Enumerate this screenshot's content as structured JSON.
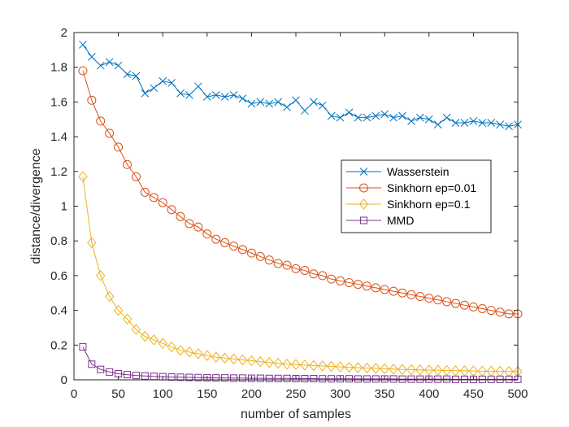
{
  "chart_data": {
    "type": "line",
    "title": "",
    "xlabel": "number of samples",
    "ylabel": "distance/divergence",
    "xlim": [
      0,
      500
    ],
    "ylim": [
      0,
      2
    ],
    "xticks": [
      0,
      50,
      100,
      150,
      200,
      250,
      300,
      350,
      400,
      450,
      500
    ],
    "yticks": [
      0,
      0.2,
      0.4,
      0.6,
      0.8,
      1,
      1.2,
      1.4,
      1.6,
      1.8,
      2
    ],
    "xtick_labels": [
      "0",
      "50",
      "100",
      "150",
      "200",
      "250",
      "300",
      "350",
      "400",
      "450",
      "500"
    ],
    "ytick_labels": [
      "0",
      "0.2",
      "0.4",
      "0.6",
      "0.8",
      "1",
      "1.2",
      "1.4",
      "1.6",
      "1.8",
      "2"
    ],
    "legend_position": "center-right",
    "x": [
      10,
      20,
      30,
      40,
      50,
      60,
      70,
      80,
      90,
      100,
      110,
      120,
      130,
      140,
      150,
      160,
      170,
      180,
      190,
      200,
      210,
      220,
      230,
      240,
      250,
      260,
      270,
      280,
      290,
      300,
      310,
      320,
      330,
      340,
      350,
      360,
      370,
      380,
      390,
      400,
      410,
      420,
      430,
      440,
      450,
      460,
      470,
      480,
      490,
      500
    ],
    "series": [
      {
        "name": "Wasserstein",
        "color": "#0072BD",
        "marker": "x",
        "values": [
          1.93,
          1.86,
          1.81,
          1.83,
          1.81,
          1.76,
          1.75,
          1.65,
          1.68,
          1.72,
          1.71,
          1.65,
          1.64,
          1.69,
          1.63,
          1.64,
          1.63,
          1.64,
          1.62,
          1.59,
          1.6,
          1.59,
          1.6,
          1.57,
          1.61,
          1.55,
          1.6,
          1.58,
          1.52,
          1.51,
          1.54,
          1.51,
          1.51,
          1.52,
          1.53,
          1.51,
          1.52,
          1.49,
          1.51,
          1.5,
          1.47,
          1.51,
          1.48,
          1.48,
          1.49,
          1.48,
          1.48,
          1.47,
          1.46,
          1.47
        ]
      },
      {
        "name": "Sinkhorn ep=0.01",
        "color": "#D95319",
        "marker": "o",
        "values": [
          1.78,
          1.61,
          1.49,
          1.42,
          1.34,
          1.24,
          1.17,
          1.08,
          1.05,
          1.02,
          0.98,
          0.94,
          0.9,
          0.88,
          0.84,
          0.81,
          0.79,
          0.77,
          0.75,
          0.73,
          0.71,
          0.69,
          0.67,
          0.66,
          0.64,
          0.63,
          0.61,
          0.6,
          0.58,
          0.57,
          0.56,
          0.55,
          0.54,
          0.53,
          0.52,
          0.51,
          0.5,
          0.49,
          0.48,
          0.47,
          0.46,
          0.45,
          0.44,
          0.43,
          0.42,
          0.41,
          0.4,
          0.39,
          0.38,
          0.38
        ]
      },
      {
        "name": "Sinkhorn ep=0.1",
        "color": "#EDB120",
        "marker": "diamond",
        "values": [
          1.17,
          0.79,
          0.6,
          0.48,
          0.4,
          0.35,
          0.29,
          0.25,
          0.23,
          0.21,
          0.19,
          0.17,
          0.16,
          0.15,
          0.14,
          0.13,
          0.125,
          0.12,
          0.115,
          0.11,
          0.105,
          0.1,
          0.095,
          0.09,
          0.088,
          0.085,
          0.082,
          0.08,
          0.077,
          0.075,
          0.072,
          0.07,
          0.068,
          0.066,
          0.064,
          0.062,
          0.06,
          0.058,
          0.057,
          0.056,
          0.055,
          0.054,
          0.053,
          0.052,
          0.051,
          0.05,
          0.05,
          0.049,
          0.048,
          0.048
        ]
      },
      {
        "name": "MMD",
        "color": "#7E2F8E",
        "marker": "square",
        "values": [
          0.19,
          0.09,
          0.06,
          0.045,
          0.035,
          0.03,
          0.025,
          0.022,
          0.02,
          0.018,
          0.016,
          0.015,
          0.014,
          0.013,
          0.012,
          0.011,
          0.011,
          0.01,
          0.01,
          0.009,
          0.009,
          0.008,
          0.008,
          0.008,
          0.007,
          0.007,
          0.007,
          0.006,
          0.006,
          0.006,
          0.006,
          0.005,
          0.005,
          0.005,
          0.005,
          0.005,
          0.004,
          0.004,
          0.004,
          0.004,
          0.004,
          0.004,
          0.003,
          0.003,
          0.003,
          0.003,
          0.003,
          0.003,
          0.003,
          0.003
        ]
      }
    ]
  }
}
